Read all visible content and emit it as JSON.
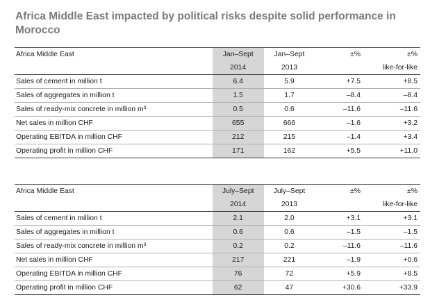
{
  "title": "Africa Middle East impacted by political risks despite solid performance in Morocco",
  "tables": [
    {
      "region": "Africa Middle East",
      "col_current_period": "Jan–Sept",
      "col_current_year": "2014",
      "col_prev_period": "Jan–Sept",
      "col_prev_year": "2013",
      "col_pct": "±%",
      "col_lfl_1": "±%",
      "col_lfl_2": "like-for-like",
      "rows": [
        {
          "label": "Sales of cement in million t",
          "cur": "6.4",
          "prev": "5.9",
          "pct": "+7.5",
          "lfl": "+8.5"
        },
        {
          "label": "Sales of aggregates in million t",
          "cur": "1.5",
          "prev": "1.7",
          "pct": "–8.4",
          "lfl": "–8.4"
        },
        {
          "label": "Sales of ready-mix concrete in million m³",
          "cur": "0.5",
          "prev": "0.6",
          "pct": "–11.6",
          "lfl": "–11.6"
        },
        {
          "label": "Net sales in million CHF",
          "cur": "655",
          "prev": "666",
          "pct": "–1.6",
          "lfl": "+3.2"
        },
        {
          "label": "Operating EBITDA in million CHF",
          "cur": "212",
          "prev": "215",
          "pct": "–1.4",
          "lfl": "+3.4"
        },
        {
          "label": "Operating profit in million CHF",
          "cur": "171",
          "prev": "162",
          "pct": "+5.5",
          "lfl": "+11.0"
        }
      ]
    },
    {
      "region": "Africa Middle East",
      "col_current_period": "July–Sept",
      "col_current_year": "2014",
      "col_prev_period": "July–Sept",
      "col_prev_year": "2013",
      "col_pct": "±%",
      "col_lfl_1": "±%",
      "col_lfl_2": "like-for-like",
      "rows": [
        {
          "label": "Sales of cement in million t",
          "cur": "2.1",
          "prev": "2.0",
          "pct": "+3.1",
          "lfl": "+3.1"
        },
        {
          "label": "Sales of aggregates in million t",
          "cur": "0.6",
          "prev": "0.6",
          "pct": "–1.5",
          "lfl": "–1.5"
        },
        {
          "label": "Sales of ready-mix concrete in million m³",
          "cur": "0.2",
          "prev": "0.2",
          "pct": "–11.6",
          "lfl": "–11.6"
        },
        {
          "label": "Net sales in million CHF",
          "cur": "217",
          "prev": "221",
          "pct": "–1.9",
          "lfl": "+0.6"
        },
        {
          "label": "Operating EBITDA in million CHF",
          "cur": "76",
          "prev": "72",
          "pct": "+5.9",
          "lfl": "+8.5"
        },
        {
          "label": "Operating profit in million CHF",
          "cur": "62",
          "prev": "47",
          "pct": "+30.6",
          "lfl": "+33.9"
        }
      ]
    }
  ]
}
